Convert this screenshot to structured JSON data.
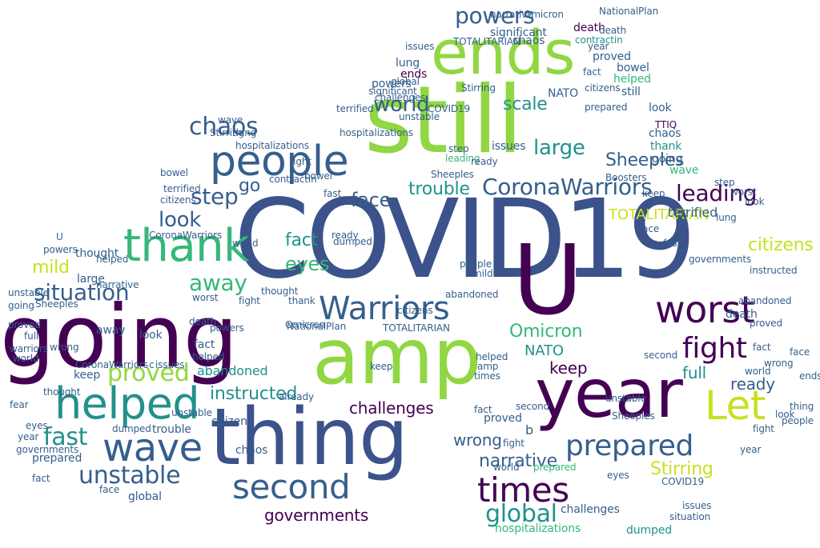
{
  "colors": {
    "dark_purple": "#440154",
    "indigo": "#3b528b",
    "slate_blue": "#355f8d",
    "teal": "#21918c",
    "green": "#35b779",
    "lime": "#90d743",
    "yellow": "#c8e020",
    "background": "#ffffff"
  },
  "words": [
    {
      "text": "COVID19"
    },
    {
      "text": "going"
    },
    {
      "text": "amp"
    },
    {
      "text": "thing"
    },
    {
      "text": "still"
    },
    {
      "text": "year"
    },
    {
      "text": "U"
    },
    {
      "text": "ends"
    },
    {
      "text": "thank"
    },
    {
      "text": "helped"
    },
    {
      "text": "people"
    },
    {
      "text": "Warriors"
    },
    {
      "text": "worst"
    },
    {
      "text": "wave"
    },
    {
      "text": "second"
    },
    {
      "text": "times"
    },
    {
      "text": "Let"
    },
    {
      "text": "fight"
    },
    {
      "text": "prepared"
    },
    {
      "text": "chaos"
    },
    {
      "text": "powers"
    },
    {
      "text": "CoronaWarriors"
    },
    {
      "text": "world"
    },
    {
      "text": "unstable"
    },
    {
      "text": "step"
    },
    {
      "text": "look"
    },
    {
      "text": "situation"
    },
    {
      "text": "away"
    },
    {
      "text": "proved"
    },
    {
      "text": "instructed"
    },
    {
      "text": "fast"
    },
    {
      "text": "governments"
    },
    {
      "text": "global"
    },
    {
      "text": "eyes"
    },
    {
      "text": "face"
    },
    {
      "text": "trouble"
    },
    {
      "text": "scale"
    },
    {
      "text": "large"
    },
    {
      "text": "leading"
    },
    {
      "text": "Omicron"
    },
    {
      "text": "narrative"
    },
    {
      "text": "challenges"
    },
    {
      "text": "ready"
    },
    {
      "text": "full"
    },
    {
      "text": "keep"
    },
    {
      "text": "NATO"
    },
    {
      "text": "Sheeples"
    },
    {
      "text": "citizens"
    },
    {
      "text": "TOTALITARIAN"
    },
    {
      "text": "Stirring"
    },
    {
      "text": "mild"
    },
    {
      "text": "fact"
    },
    {
      "text": "hospitalizations"
    },
    {
      "text": "wrong"
    },
    {
      "text": "go"
    },
    {
      "text": "abandoned"
    },
    {
      "text": "dumped"
    },
    {
      "text": "terrified"
    },
    {
      "text": "death"
    },
    {
      "text": "bowel"
    },
    {
      "text": "lung"
    },
    {
      "text": "significant"
    },
    {
      "text": "contractin"
    },
    {
      "text": "issues"
    },
    {
      "text": "TTIQ"
    },
    {
      "text": "NationalPlan"
    },
    {
      "text": "already"
    },
    {
      "text": "thought"
    },
    {
      "text": "fear"
    },
    {
      "text": "warriors"
    },
    {
      "text": "Boosters"
    },
    {
      "text": "c"
    },
    {
      "text": "b"
    }
  ]
}
